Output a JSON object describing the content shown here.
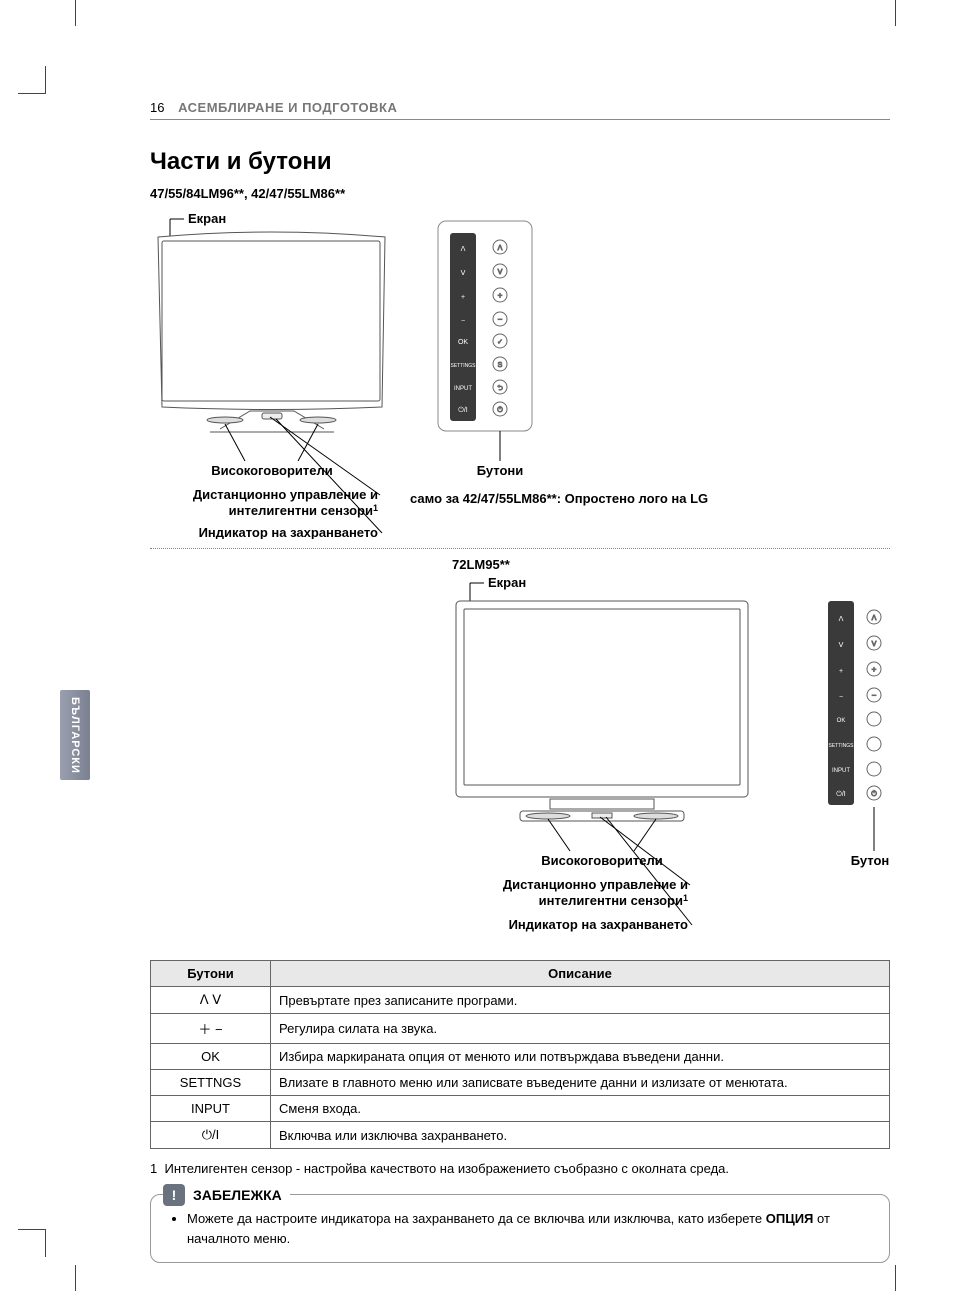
{
  "page_number": "16",
  "header_section": "АСЕМБЛИРАНЕ И ПОДГОТОВКА",
  "side_tab": "БЪЛГАРСКИ",
  "title": "Части и бутони",
  "models_line": "47/55/84LM96**, 42/47/55LM86**",
  "diagram1": {
    "screen_label": "Екран",
    "speakers_label": "Високоговорители",
    "remote_sensor_label_l1": "Дистанционно управление и",
    "remote_sensor_label_l2": "интелигентни сензори",
    "remote_sensor_sup": "1",
    "power_indicator_label": "Индикатор на захранването",
    "buttons_label": "Бутони",
    "simplified_logo": "само за 42/47/55LM86**: Опростено лого на LG",
    "button_panel": {
      "labels": [
        "OK",
        "SETTINGS",
        "INPUT"
      ],
      "glyph_up": "ᐱ",
      "glyph_down": "ᐯ",
      "glyph_plus": "+",
      "glyph_minus": "−",
      "glyph_ok": "✓",
      "glyph_s": "S",
      "glyph_input": "⮌",
      "glyph_power": "⏻"
    }
  },
  "diagram2": {
    "model": "72LM95**",
    "screen_label": "Екран",
    "speakers_label": "Високоговорители",
    "remote_sensor_label_l1": "Дистанционно управление и",
    "remote_sensor_label_l2": "интелигентни сензори",
    "remote_sensor_sup": "1",
    "power_indicator_label": "Индикатор на захранването",
    "buttons_label": "Бутони"
  },
  "table": {
    "col1": "Бутони",
    "col2": "Описание",
    "rows": [
      {
        "btn": "ᐱ ᐯ",
        "desc": "Превъртате през записаните програми."
      },
      {
        "btn": "＋ −",
        "desc": "Регулира силата на звука."
      },
      {
        "btn": "OK",
        "desc": "Избира маркираната опция от менюто или потвърждава въведени данни."
      },
      {
        "btn": "SETTNGS",
        "desc": "Влизате в главното меню или записвате въведените данни и излизате от менютата."
      },
      {
        "btn": "INPUT",
        "desc": "Сменя входа."
      },
      {
        "btn": "⏻/I",
        "desc": "Включва или изключва захранването."
      }
    ]
  },
  "footnote_num": "1",
  "footnote_text": "Интелигентен сензор - настройва качеството на изображението съобразно с околната среда.",
  "note_title": "ЗАБЕЛЕЖКА",
  "note_bullet_pre": "Можете да настроите индикатора на захранването да се включва или изключва, като изберете ",
  "note_bullet_bold": "ОПЦИЯ",
  "note_bullet_post": " от началното меню.",
  "svg": {
    "panel_bg": "#3a3a3a",
    "panel_stroke": "#888",
    "tv_stroke": "#555",
    "tv_fill": "#fff",
    "line": "#000"
  }
}
